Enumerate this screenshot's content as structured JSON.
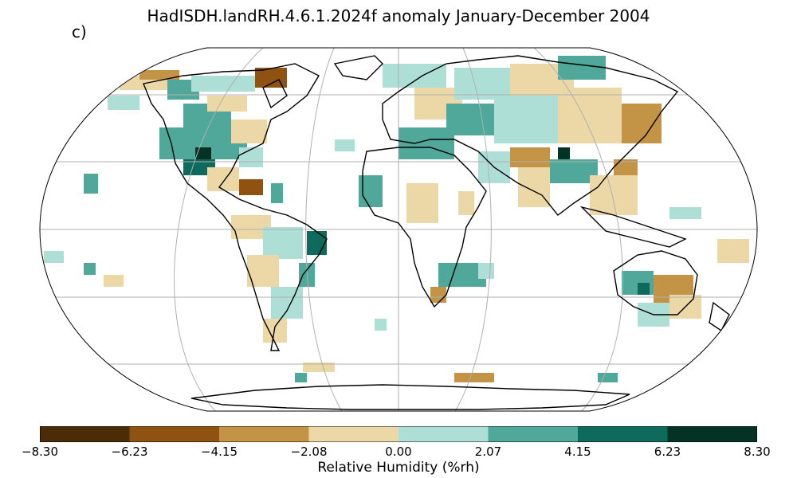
{
  "title": "HadISDH.landRH.4.6.1.2024f anomaly January-December 2004",
  "panel_label": "c)",
  "colorbar": {
    "label": "Relative Humidity (%rh)",
    "ticks": [
      "−8.30",
      "−6.23",
      "−4.15",
      "−2.08",
      "0.00",
      "2.07",
      "4.15",
      "6.23",
      "8.30"
    ],
    "colors": [
      "#4a2c06",
      "#8f5211",
      "#c39346",
      "#ecd8a6",
      "#aedfd6",
      "#4fa89a",
      "#0e6a5c",
      "#043326"
    ]
  },
  "colors": {
    "land_outline": "#000000",
    "graticule": "#b0b0b0"
  }
}
